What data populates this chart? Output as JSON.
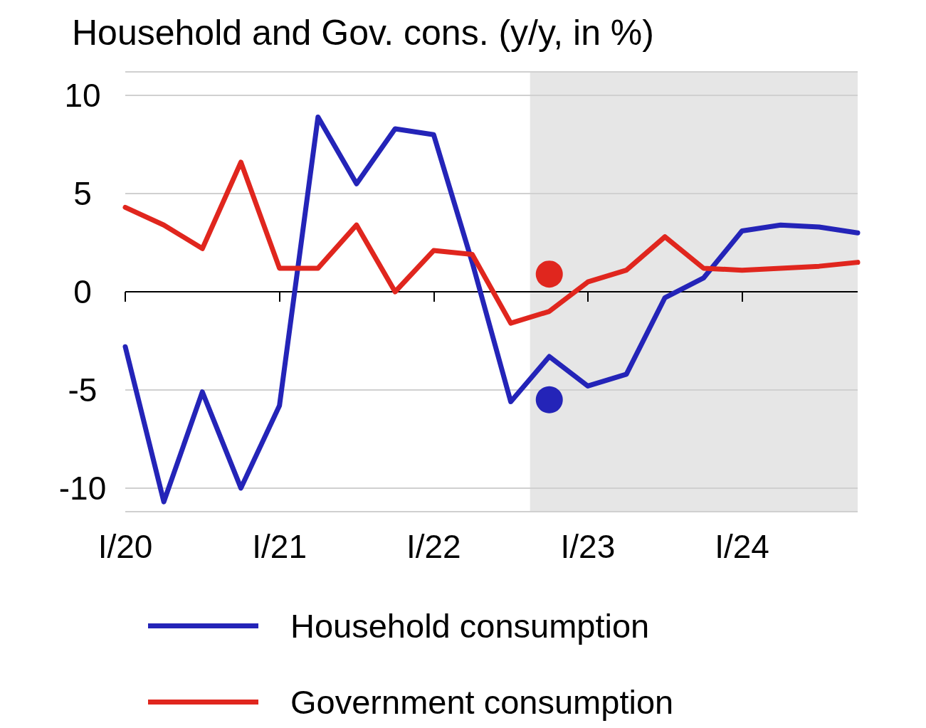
{
  "chart_data": {
    "type": "line",
    "title": "Household and Gov. cons. (y/y, in %)",
    "categories": [
      "I/20",
      null,
      null,
      null,
      "I/21",
      null,
      null,
      null,
      "I/22",
      null,
      null,
      null,
      "I/23",
      null,
      null,
      null,
      "I/24",
      null,
      null,
      null
    ],
    "series": [
      {
        "name": "Household consumption",
        "color": "#2424b8",
        "values": [
          -2.8,
          -10.7,
          -5.1,
          -10.0,
          -5.8,
          8.9,
          5.5,
          8.3,
          8.0,
          1.5,
          -5.6,
          -3.3,
          -4.8,
          -4.2,
          -0.3,
          0.7,
          3.1,
          3.4,
          3.3,
          3.0
        ]
      },
      {
        "name": "Government consumption",
        "color": "#e0261e",
        "values": [
          4.3,
          3.4,
          2.2,
          6.6,
          1.2,
          1.2,
          3.4,
          0.0,
          2.1,
          1.9,
          -1.6,
          -1.0,
          0.5,
          1.1,
          2.8,
          1.2,
          1.1,
          1.2,
          1.3,
          1.5
        ]
      },
      {
        "type": "scatter",
        "marker": "circle",
        "color": "#2424b8",
        "values": [
          null,
          null,
          null,
          null,
          null,
          null,
          null,
          null,
          null,
          null,
          null,
          -5.5,
          null,
          null,
          null,
          null,
          null,
          null,
          null,
          null
        ]
      },
      {
        "type": "scatter",
        "marker": "circle",
        "color": "#e0261e",
        "values": [
          null,
          null,
          null,
          null,
          null,
          null,
          null,
          null,
          null,
          null,
          null,
          0.9,
          null,
          null,
          null,
          null,
          null,
          null,
          null,
          null
        ]
      }
    ],
    "ylim": [
      -11.2,
      11.2
    ],
    "yticks": [
      -10,
      -5,
      0,
      5,
      10
    ],
    "grid": "y",
    "legend": "bottom",
    "line_style": "solid",
    "ref_lines": [
      {
        "axis": "y",
        "value": 0,
        "color": "#000000"
      }
    ]
  }
}
